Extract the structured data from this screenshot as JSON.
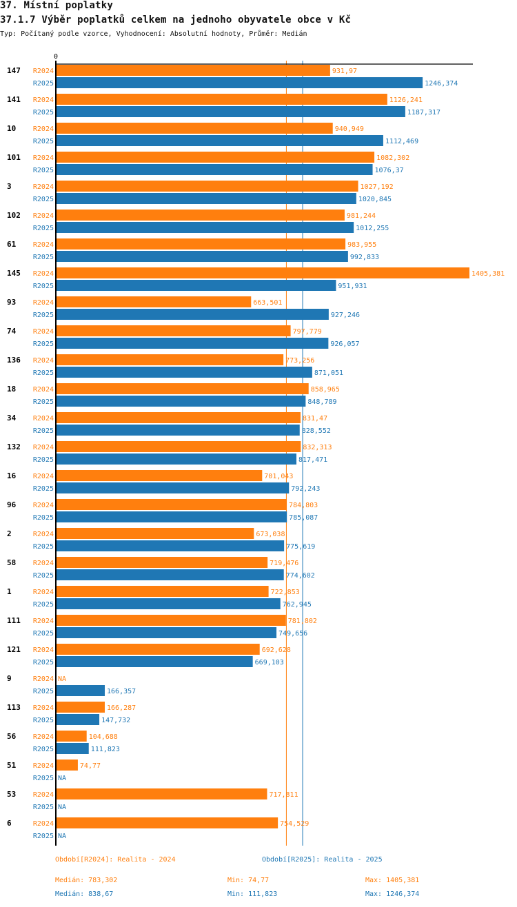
{
  "header": {
    "title": "37. Místní poplatky",
    "subtitle": "37.1.7 Výběr poplatků celkem na jednoho obyvatele obce v  Kč",
    "description": "Typ: Počítaný podle vzorce, Vyhodnocení: Absolutní hodnoty, Průměr: Medián"
  },
  "colors": {
    "R2024": "#ff7f0e",
    "R2025": "#1f77b4",
    "axis": "#000000"
  },
  "chart_data": {
    "type": "bar",
    "orientation": "horizontal",
    "title": "37.1.7 Výběr poplatků celkem na jednoho obyvatele obce v  Kč",
    "xlabel": "",
    "ylabel": "",
    "xlim": [
      0,
      1405.381
    ],
    "x_tick_labels": [
      "0"
    ],
    "grid": false,
    "categories": [
      "147",
      "141",
      "10",
      "101",
      "3",
      "102",
      "61",
      "145",
      "93",
      "74",
      "136",
      "18",
      "34",
      "132",
      "16",
      "96",
      "2",
      "58",
      "1",
      "111",
      "121",
      "9",
      "113",
      "56",
      "51",
      "53",
      "6"
    ],
    "series": [
      {
        "name": "R2024",
        "values": [
          931.97,
          1126.241,
          940.949,
          1082.302,
          1027.192,
          981.244,
          983.955,
          1405.381,
          663.501,
          797.779,
          773.256,
          858.965,
          831.47,
          832.313,
          701.043,
          784.803,
          673.038,
          719.476,
          722.853,
          781.802,
          692.628,
          null,
          166.287,
          104.688,
          74.77,
          717.811,
          754.529
        ],
        "labels": [
          "931,97",
          "1126,241",
          "940,949",
          "1082,302",
          "1027,192",
          "981,244",
          "983,955",
          "1405,381",
          "663,501",
          "797,779",
          "773,256",
          "858,965",
          "831,47",
          "832,313",
          "701,043",
          "784,803",
          "673,038",
          "719,476",
          "722,853",
          "781,802",
          "692,628",
          "NA",
          "166,287",
          "104,688",
          "74,77",
          "717,811",
          "754,529"
        ]
      },
      {
        "name": "R2025",
        "values": [
          1246.374,
          1187.317,
          1112.469,
          1076.37,
          1020.845,
          1012.255,
          992.833,
          951.931,
          927.246,
          926.057,
          871.051,
          848.789,
          828.552,
          817.471,
          792.243,
          785.087,
          775.619,
          774.602,
          762.945,
          749.656,
          669.103,
          166.357,
          147.732,
          111.823,
          null,
          null,
          null
        ],
        "labels": [
          "1246,374",
          "1187,317",
          "1112,469",
          "1076,37",
          "1020,845",
          "1012,255",
          "992,833",
          "951,931",
          "927,246",
          "926,057",
          "871,051",
          "848,789",
          "828,552",
          "817,471",
          "792,243",
          "785,087",
          "775,619",
          "774,602",
          "762,945",
          "749,656",
          "669,103",
          "166,357",
          "147,732",
          "111,823",
          "NA",
          "NA",
          "NA"
        ]
      }
    ],
    "reference_lines": [
      {
        "series": "R2024",
        "type": "median",
        "value": 783.302
      },
      {
        "series": "R2025",
        "type": "median",
        "value": 838.67
      }
    ],
    "legend": [
      {
        "series": "R2024",
        "label": "Období[R2024]: Realita - 2024"
      },
      {
        "series": "R2025",
        "label": "Období[R2025]: Realita - 2025"
      }
    ]
  },
  "stats": {
    "R2024": {
      "median": "Medián: 783,302",
      "min": "Min: 74,77",
      "max": "Max: 1405,381"
    },
    "R2025": {
      "median": "Medián: 838,67",
      "min": "Min: 111,823",
      "max": "Max: 1246,374"
    }
  }
}
